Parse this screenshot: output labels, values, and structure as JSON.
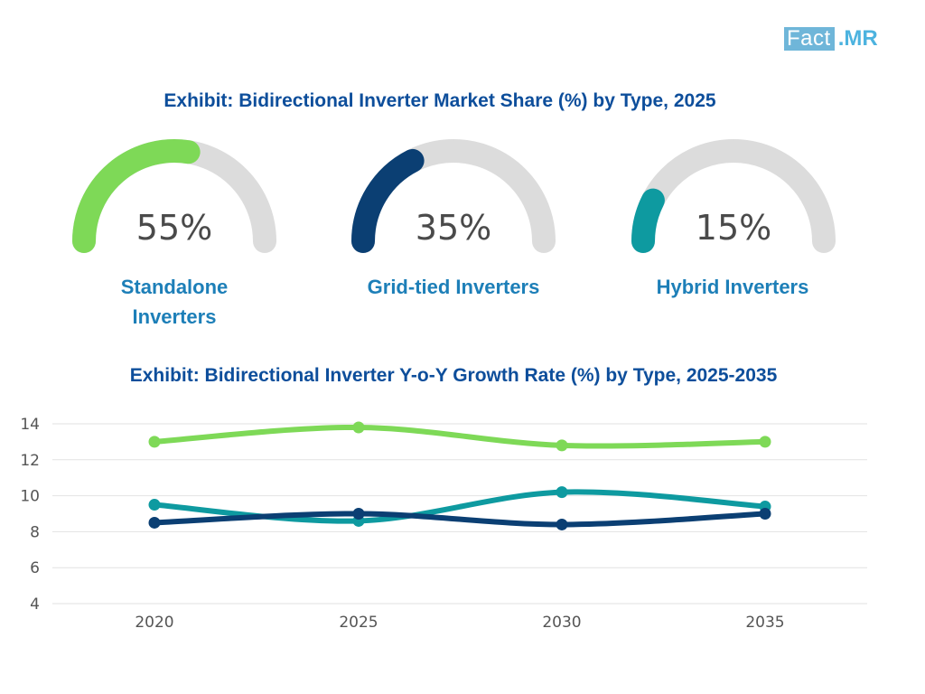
{
  "logo": {
    "part1": "Fact",
    "part2": ".MR"
  },
  "colors": {
    "standalone": "#7ed957",
    "grid_tied": "#0b3f73",
    "hybrid": "#0e9aa0",
    "track": "#dcdcdc",
    "title": "#0d4e9b",
    "label": "#1d7fb8"
  },
  "gauges": [
    {
      "value": 55,
      "display": "55%",
      "label": "Standalone Inverters",
      "color": "#7ed957"
    },
    {
      "value": 35,
      "display": "35%",
      "label": "Grid-tied Inverters",
      "color": "#0b3f73"
    },
    {
      "value": 15,
      "display": "15%",
      "label": "Hybrid Inverters",
      "color": "#0e9aa0"
    }
  ],
  "chart_data": [
    {
      "type": "pie",
      "title": "Exhibit: Bidirectional Inverter Market Share (%) by Type, 2025",
      "categories": [
        "Standalone Inverters",
        "Grid-tied Inverters",
        "Hybrid Inverters"
      ],
      "values": [
        55,
        35,
        15
      ]
    },
    {
      "type": "line",
      "title": "Exhibit: Bidirectional Inverter Y-o-Y Growth Rate (%) by Type, 2025-2035",
      "categories": [
        "2020",
        "2025",
        "2030",
        "2035"
      ],
      "series": [
        {
          "name": "Standalone Inverters",
          "color": "#7ed957",
          "values": [
            13.0,
            13.8,
            12.8,
            13.0
          ]
        },
        {
          "name": "Hybrid Inverters",
          "color": "#0e9aa0",
          "values": [
            9.5,
            8.6,
            10.2,
            9.4
          ]
        },
        {
          "name": "Grid-tied Inverters",
          "color": "#0b3f73",
          "values": [
            8.5,
            9.0,
            8.4,
            9.0
          ]
        }
      ],
      "y_ticks": [
        "4",
        "6",
        "8",
        "10",
        "12",
        "14"
      ],
      "ylim": [
        4,
        14
      ],
      "grid": true,
      "xlabel": "",
      "ylabel": ""
    }
  ]
}
